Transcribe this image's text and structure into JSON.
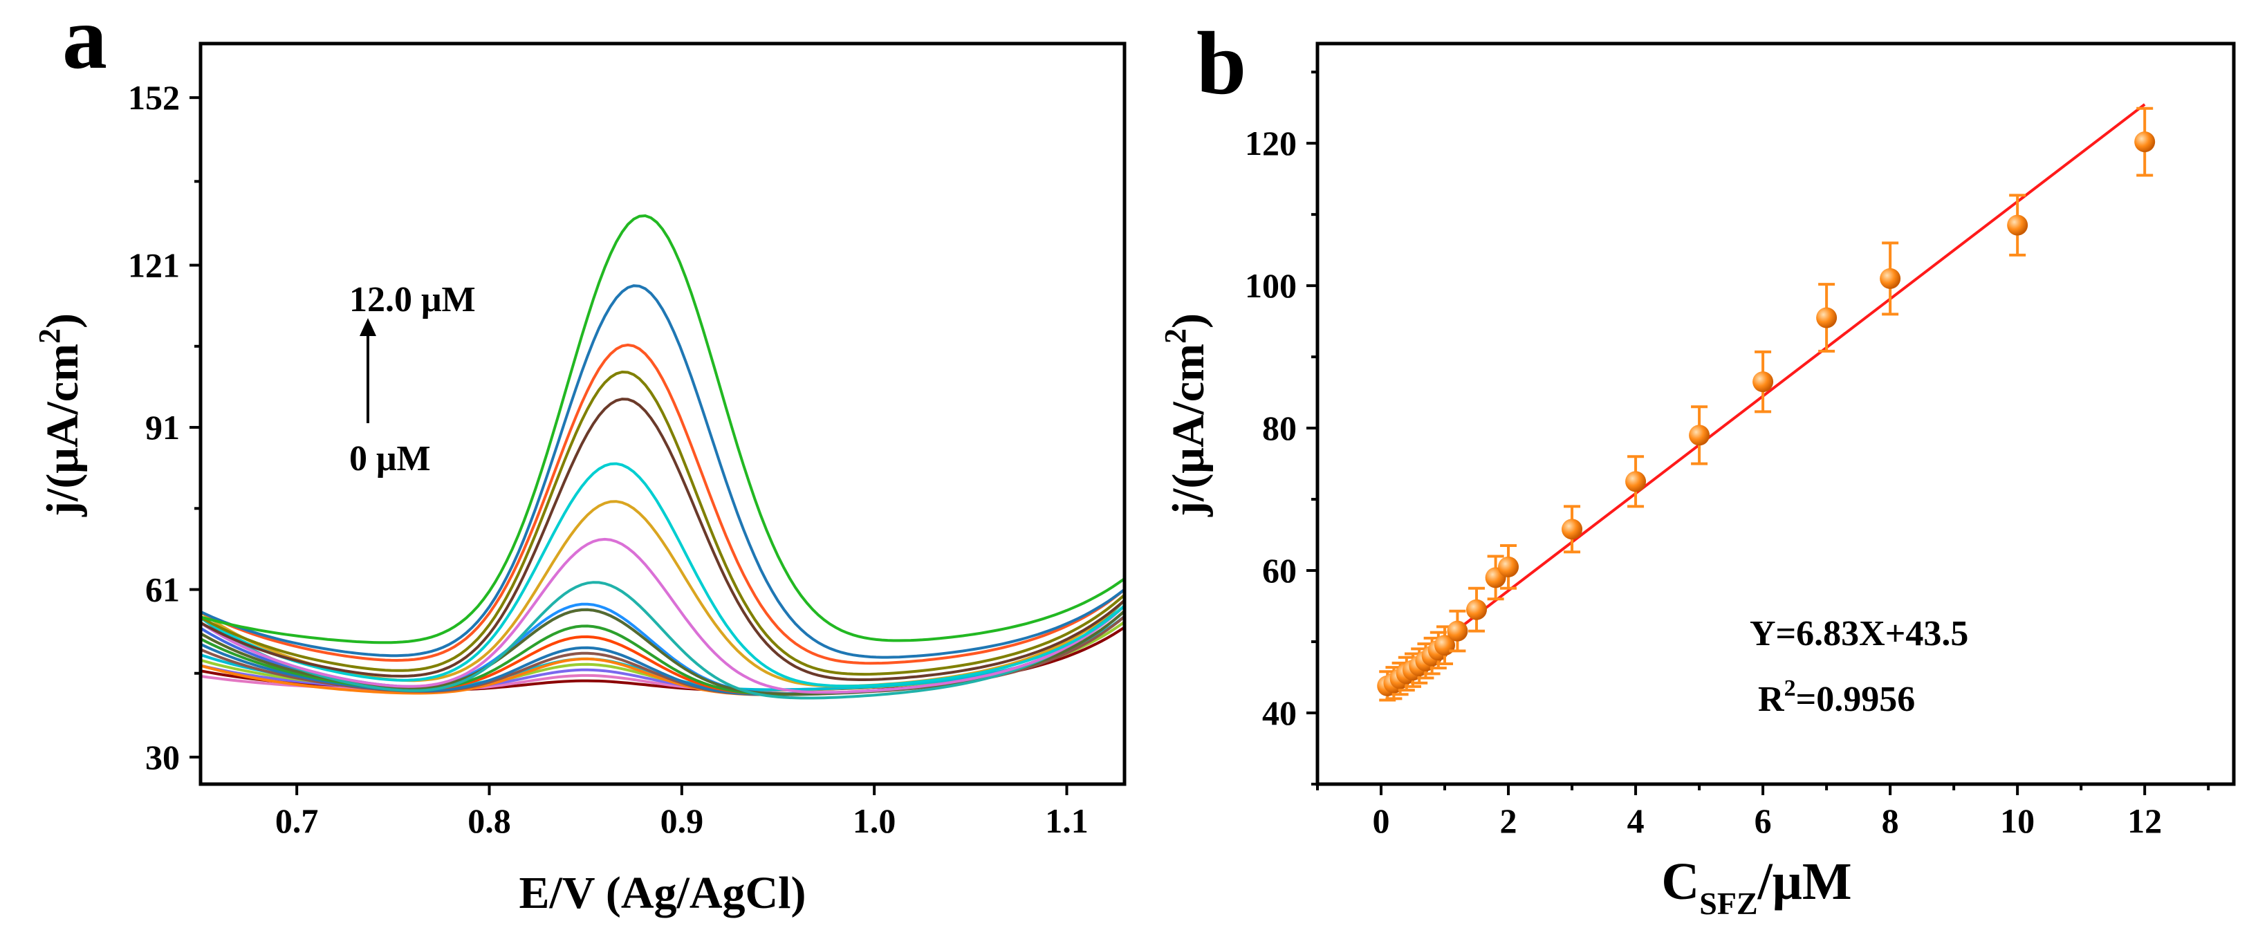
{
  "chart_data": [
    {
      "panel": "a",
      "type": "line",
      "xlabel": "E/V (Ag/AgCl)",
      "ylabel": "j/(μA/cm²)",
      "ylabel_main": "j/(μA/cm",
      "ylabel_sup": "2",
      "ylabel_end": ")",
      "xlim": [
        0.65,
        1.13
      ],
      "ylim": [
        25,
        162
      ],
      "xticks": [
        0.7,
        0.8,
        0.9,
        1.0,
        1.1
      ],
      "xtick_labels": [
        "0.7",
        "0.8",
        "0.9",
        "1.0",
        "1.1"
      ],
      "yticks": [
        30,
        61,
        91,
        121,
        152
      ],
      "ytick_labels": [
        "30",
        "61",
        "91",
        "121",
        "152"
      ],
      "annotation_top": "12.0 μM",
      "annotation_bottom": "0 μM",
      "series_params": [
        {
          "color": "#8b0000",
          "peak_e": 0.85,
          "peak_h": 2,
          "width": 0.045,
          "b_left": 46,
          "b_min": 42,
          "b_right": 54
        },
        {
          "color": "#e377c2",
          "peak_e": 0.85,
          "peak_h": 3,
          "width": 0.045,
          "b_left": 45,
          "b_min": 42,
          "b_right": 55
        },
        {
          "color": "#7b68ee",
          "peak_e": 0.85,
          "peak_h": 4,
          "width": 0.045,
          "b_left": 47,
          "b_min": 42,
          "b_right": 56
        },
        {
          "color": "#9acd32",
          "peak_e": 0.85,
          "peak_h": 5,
          "width": 0.045,
          "b_left": 48,
          "b_min": 42,
          "b_right": 55
        },
        {
          "color": "#00bcd4",
          "peak_e": 0.85,
          "peak_h": 6,
          "width": 0.046,
          "b_left": 49,
          "b_min": 42,
          "b_right": 56
        },
        {
          "color": "#ff7f0e",
          "peak_e": 0.85,
          "peak_h": 7,
          "width": 0.046,
          "b_left": 47,
          "b_min": 41,
          "b_right": 57
        },
        {
          "color": "#8c564b",
          "peak_e": 0.85,
          "peak_h": 8,
          "width": 0.046,
          "b_left": 50,
          "b_min": 41,
          "b_right": 56
        },
        {
          "color": "#1f77b4",
          "peak_e": 0.85,
          "peak_h": 9,
          "width": 0.046,
          "b_left": 51,
          "b_min": 41,
          "b_right": 57
        },
        {
          "color": "#ff4500",
          "peak_e": 0.85,
          "peak_h": 11,
          "width": 0.047,
          "b_left": 53,
          "b_min": 41,
          "b_right": 58
        },
        {
          "color": "#2ca02c",
          "peak_e": 0.85,
          "peak_h": 13,
          "width": 0.047,
          "b_left": 52,
          "b_min": 41,
          "b_right": 57
        },
        {
          "color": "#4169e1",
          "peak_e": 0.85,
          "peak_h": 16,
          "width": 0.048,
          "b_left": 54,
          "b_min": 41,
          "b_right": 58
        },
        {
          "color": "#1e90ff",
          "peak_e": 0.85,
          "peak_h": 17,
          "width": 0.048,
          "b_left": 55,
          "b_min": 41,
          "b_right": 58
        },
        {
          "color": "#556b2f",
          "peak_e": 0.85,
          "peak_h": 16,
          "width": 0.048,
          "b_left": 53,
          "b_min": 41,
          "b_right": 57
        },
        {
          "color": "#20b2aa",
          "peak_e": 0.855,
          "peak_h": 22,
          "width": 0.049,
          "b_left": 56,
          "b_min": 40,
          "b_right": 59
        },
        {
          "color": "#da70d6",
          "peak_e": 0.86,
          "peak_h": 29,
          "width": 0.05,
          "b_left": 55,
          "b_min": 41,
          "b_right": 58
        },
        {
          "color": "#daa520",
          "peak_e": 0.865,
          "peak_h": 35,
          "width": 0.051,
          "b_left": 57,
          "b_min": 42,
          "b_right": 59
        },
        {
          "color": "#00ced1",
          "peak_e": 0.865,
          "peak_h": 42,
          "width": 0.052,
          "b_left": 56,
          "b_min": 42,
          "b_right": 58
        },
        {
          "color": "#6b3a2a",
          "peak_e": 0.87,
          "peak_h": 53,
          "width": 0.053,
          "b_left": 55,
          "b_min": 43,
          "b_right": 59
        },
        {
          "color": "#808000",
          "peak_e": 0.87,
          "peak_h": 57,
          "width": 0.053,
          "b_left": 56,
          "b_min": 44,
          "b_right": 60
        },
        {
          "color": "#ff5722",
          "peak_e": 0.872,
          "peak_h": 60,
          "width": 0.054,
          "b_left": 57,
          "b_min": 46,
          "b_right": 61
        },
        {
          "color": "#1f77b4",
          "peak_e": 0.876,
          "peak_h": 70,
          "width": 0.055,
          "b_left": 57,
          "b_min": 47,
          "b_right": 61
        },
        {
          "color": "#22b822",
          "peak_e": 0.88,
          "peak_h": 80,
          "width": 0.056,
          "b_left": 56,
          "b_min": 50,
          "b_right": 63
        }
      ]
    },
    {
      "panel": "b",
      "type": "scatter",
      "xlabel_main": "C",
      "xlabel_sub": "SFZ",
      "xlabel_end": "/μM",
      "ylabel_main": "j/(μA/cm",
      "ylabel_sup": "2",
      "ylabel_end": ")",
      "xlim": [
        -1,
        13.4
      ],
      "ylim": [
        30,
        134
      ],
      "xticks": [
        0,
        2,
        4,
        6,
        8,
        10,
        12
      ],
      "xtick_labels": [
        "0",
        "2",
        "4",
        "6",
        "8",
        "10",
        "12"
      ],
      "yticks": [
        40,
        60,
        80,
        100,
        120
      ],
      "ytick_labels": [
        "40",
        "60",
        "80",
        "100",
        "120"
      ],
      "fit": {
        "slope": 6.83,
        "intercept": 43.5,
        "x_range": [
          0.1,
          12
        ],
        "color": "#ff1a1a"
      },
      "equation": "Y=6.83X+43.5",
      "r2_main": "R",
      "r2_sup": "2",
      "r2_end": "=0.9956",
      "marker_color": "#ff8c1a",
      "points": [
        {
          "x": 0.1,
          "y": 43.8,
          "err": 2.0
        },
        {
          "x": 0.2,
          "y": 44.2,
          "err": 2.2
        },
        {
          "x": 0.3,
          "y": 44.8,
          "err": 2.2
        },
        {
          "x": 0.4,
          "y": 45.5,
          "err": 2.3
        },
        {
          "x": 0.5,
          "y": 46.0,
          "err": 2.3
        },
        {
          "x": 0.6,
          "y": 46.6,
          "err": 2.4
        },
        {
          "x": 0.7,
          "y": 47.3,
          "err": 2.4
        },
        {
          "x": 0.8,
          "y": 48.0,
          "err": 2.5
        },
        {
          "x": 0.9,
          "y": 48.8,
          "err": 2.5
        },
        {
          "x": 1.0,
          "y": 49.5,
          "err": 2.6
        },
        {
          "x": 1.2,
          "y": 51.5,
          "err": 2.8
        },
        {
          "x": 1.5,
          "y": 54.5,
          "err": 3.0
        },
        {
          "x": 1.8,
          "y": 59.0,
          "err": 3.0
        },
        {
          "x": 2.0,
          "y": 60.5,
          "err": 3.0
        },
        {
          "x": 3.0,
          "y": 65.8,
          "err": 3.2
        },
        {
          "x": 4.0,
          "y": 72.5,
          "err": 3.5
        },
        {
          "x": 5.0,
          "y": 79.0,
          "err": 4.0
        },
        {
          "x": 6.0,
          "y": 86.5,
          "err": 4.2
        },
        {
          "x": 7.0,
          "y": 95.5,
          "err": 4.7
        },
        {
          "x": 8.0,
          "y": 101.0,
          "err": 5.0
        },
        {
          "x": 10.0,
          "y": 108.5,
          "err": 4.2
        },
        {
          "x": 12.0,
          "y": 120.2,
          "err": 4.7
        }
      ]
    }
  ]
}
